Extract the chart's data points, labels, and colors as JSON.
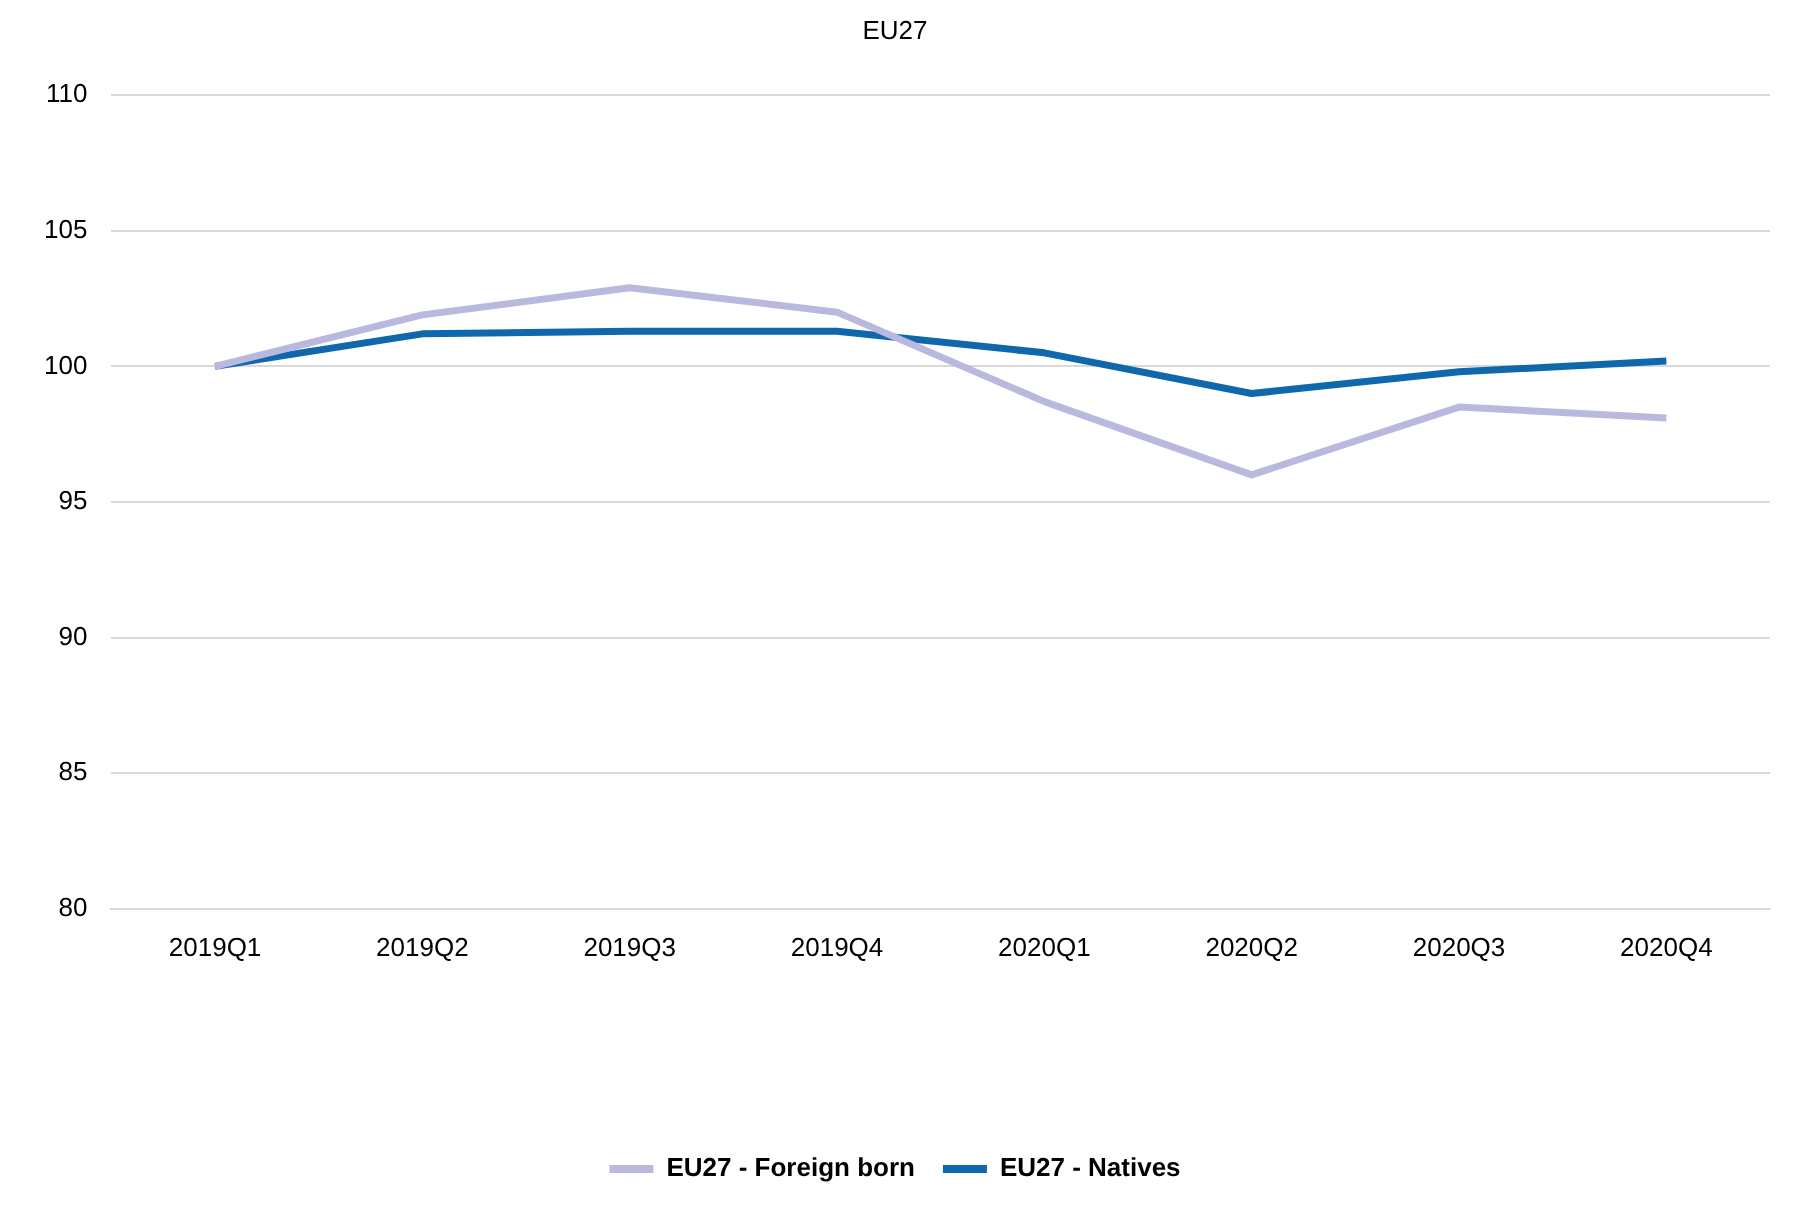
{
  "chart_data": {
    "type": "line",
    "title": "EU27",
    "categories": [
      "2019Q1",
      "2019Q2",
      "2019Q3",
      "2019Q4",
      "2020Q1",
      "2020Q2",
      "2020Q3",
      "2020Q4"
    ],
    "series": [
      {
        "name": "EU27 - Foreign born",
        "color": "#b9b9e0",
        "values": [
          100,
          101.9,
          102.9,
          102.0,
          98.7,
          96.0,
          98.5,
          98.1
        ]
      },
      {
        "name": "EU27 - Natives",
        "color": "#0e68ab",
        "values": [
          100,
          101.2,
          101.3,
          101.3,
          100.5,
          99.0,
          99.8,
          100.2
        ]
      }
    ],
    "ylim": [
      80,
      110
    ],
    "yticks": [
      80,
      85,
      90,
      95,
      100,
      105,
      110
    ],
    "grid": "y",
    "legend": "bottom",
    "marker": "none"
  }
}
